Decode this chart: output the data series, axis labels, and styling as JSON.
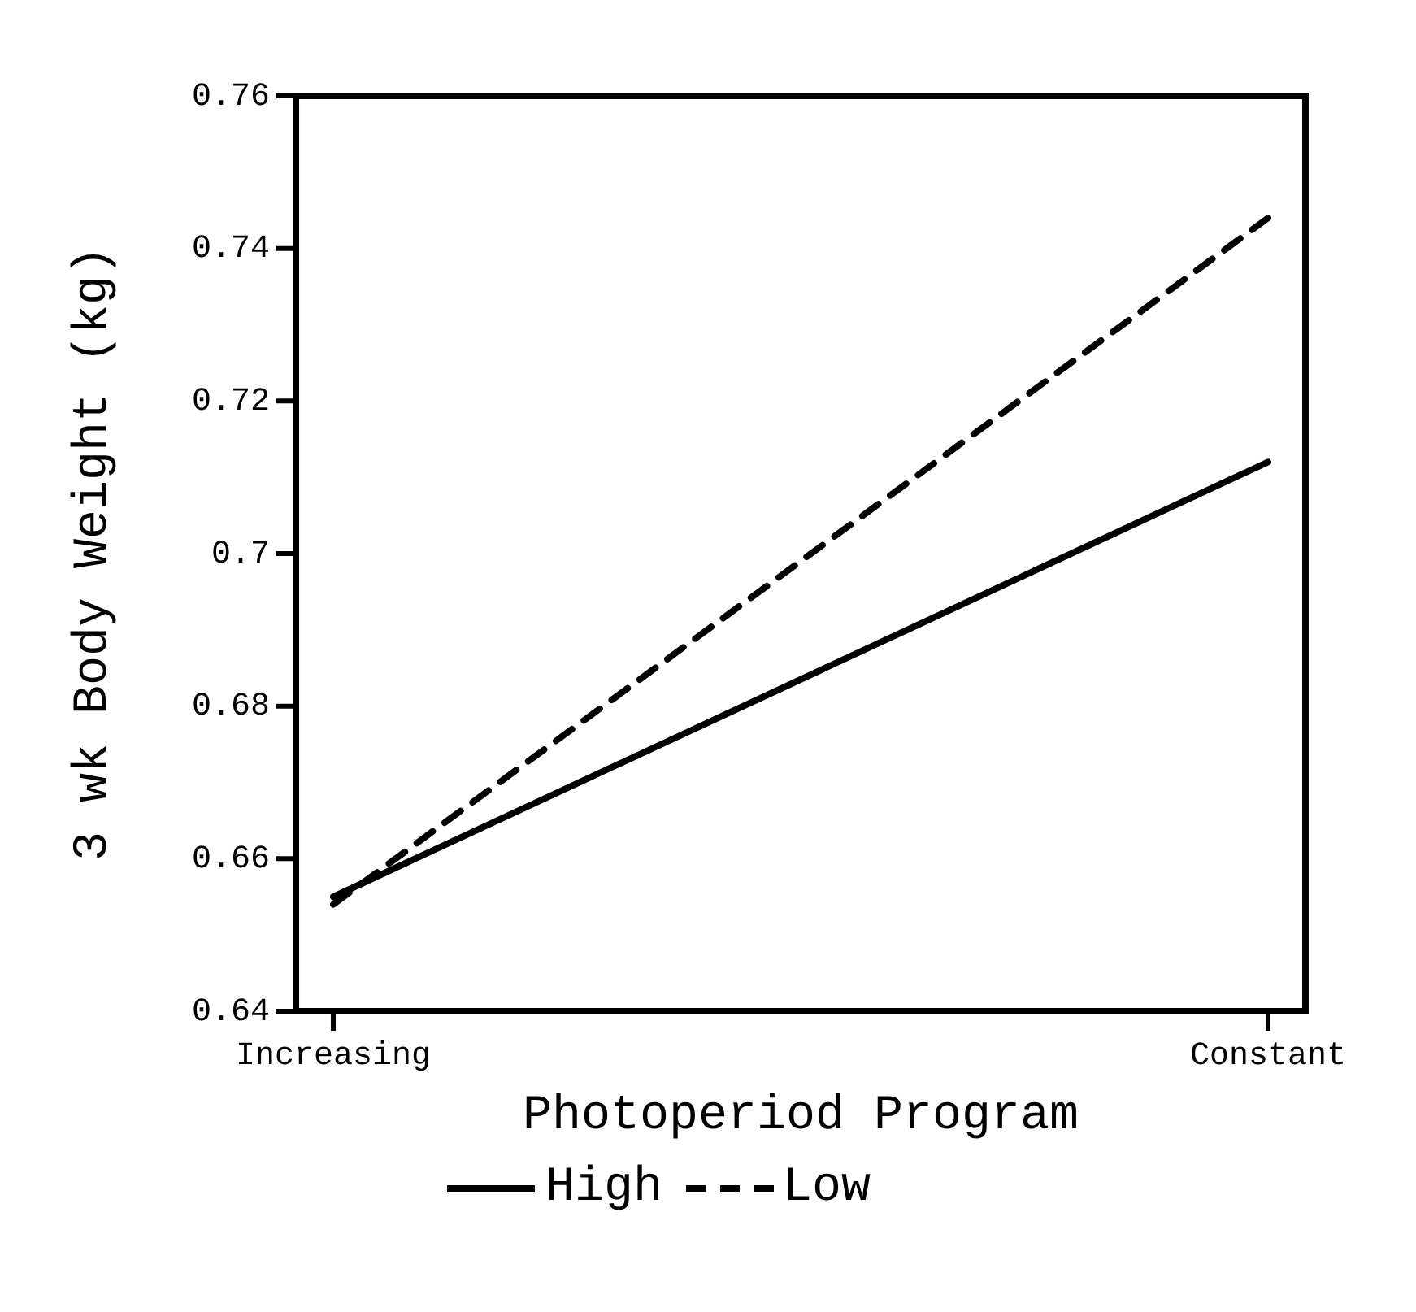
{
  "chart_data": {
    "type": "line",
    "xlabel": "Photoperiod Program",
    "ylabel": "3 wk Body Weight (kg)",
    "categories": [
      "Increasing",
      "Constant"
    ],
    "series": [
      {
        "name": "High",
        "color": "#000000",
        "values": [
          0.655,
          0.712
        ],
        "line_style": "solid"
      },
      {
        "name": "Low",
        "color": "#000000",
        "values": [
          0.654,
          0.744
        ],
        "line_style": "dashed"
      }
    ],
    "ylim": [
      0.64,
      0.76
    ],
    "yticks": [
      0.64,
      0.66,
      0.68,
      0.7,
      0.72,
      0.74,
      0.76
    ],
    "grid": false,
    "legend": "bottom",
    "marker": "none"
  }
}
